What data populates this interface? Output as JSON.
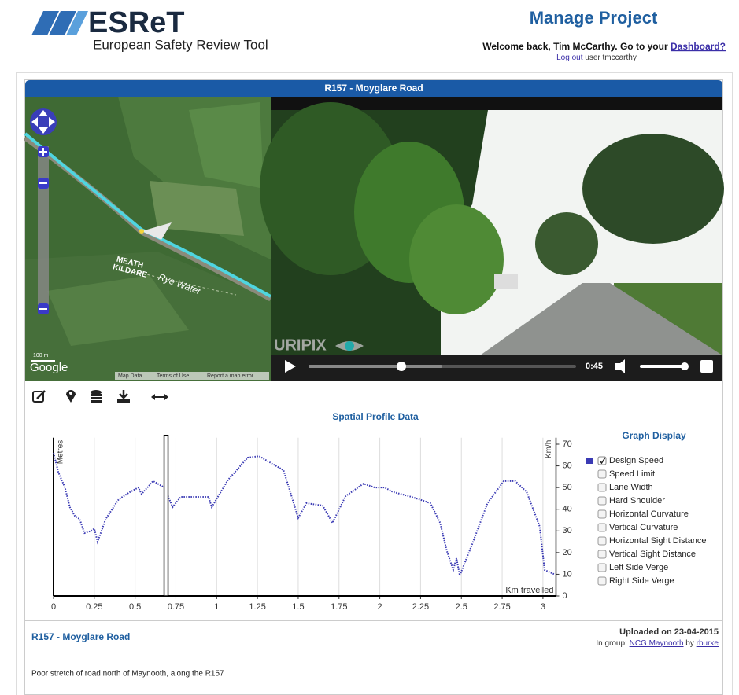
{
  "header": {
    "logo": "ESReT",
    "subtitle": "European Safety Review Tool",
    "page_title": "Manage Project",
    "welcome": "Welcome back, Tim McCarthy. Go to your",
    "dashboard_link": "Dashboard?",
    "logout": "Log out",
    "user": "user tmccarthy"
  },
  "panel": {
    "title": "R157 - Moyglare Road"
  },
  "map": {
    "labels": [
      "MEATH",
      "KILDARE",
      "Rye Water"
    ],
    "scale": "100 m",
    "brand": "Google",
    "footer": [
      "Map Data",
      "Terms of Use",
      "Report a map error"
    ]
  },
  "video": {
    "watermark": "URIPIX",
    "time": "0:45"
  },
  "chart_data": {
    "type": "line",
    "title": "Spatial Profile Data",
    "y_label": "Metres",
    "y2_label": "Km/h",
    "x_label": "Km travelled",
    "x": [
      0,
      0.03,
      0.07,
      0.1,
      0.13,
      0.16,
      0.19,
      0.23,
      0.25,
      0.27,
      0.32,
      0.4,
      0.47,
      0.52,
      0.54,
      0.61,
      0.68,
      0.73,
      0.78,
      0.85,
      0.95,
      0.97,
      1.07,
      1.19,
      1.26,
      1.34,
      1.41,
      1.5,
      1.55,
      1.65,
      1.71,
      1.79,
      1.9,
      1.97,
      2.03,
      2.08,
      2.18,
      2.24,
      2.31,
      2.37,
      2.41,
      2.45,
      2.47,
      2.49,
      2.57,
      2.66,
      2.76,
      2.83,
      2.9,
      2.98,
      3.01,
      3.07
    ],
    "series": [
      {
        "name": "Design Speed",
        "color": "#3a3ab4",
        "values": [
          66,
          57,
          50,
          41,
          37,
          35.5,
          29,
          30,
          31,
          25,
          35.5,
          44.6,
          48,
          50,
          47,
          53,
          50,
          41,
          45.7,
          45.7,
          45.7,
          41,
          53.6,
          63.8,
          64.5,
          61,
          58,
          36,
          42.8,
          41.7,
          33.7,
          46,
          51.8,
          50,
          50,
          48,
          46,
          44.6,
          42.8,
          33.7,
          21,
          12,
          17.4,
          9.4,
          24.6,
          42.8,
          53,
          53,
          48,
          32,
          12,
          10
        ]
      }
    ],
    "xlim": [
      0,
      3.08
    ],
    "xticks": [
      0,
      0.25,
      0.5,
      0.75,
      1,
      1.25,
      1.5,
      1.75,
      2,
      2.25,
      2.5,
      2.75,
      3
    ],
    "ylim": [
      0,
      73
    ],
    "yticks": [
      0,
      10,
      20,
      30,
      40,
      50,
      60,
      70
    ],
    "grid": "x",
    "cursor_x": 0.69
  },
  "graph_display": {
    "title": "Graph Display",
    "options": [
      "Speed Limit",
      "Lane Width",
      "Hard Shoulder",
      "Horizontal Curvature",
      "Vertical Curvature",
      "Horizontal Sight Distance",
      "Vertical Sight Distance",
      "Left Side Verge",
      "Right Side Verge"
    ]
  },
  "footer": {
    "title": "R157 - Moyglare Road",
    "uploaded": "Uploaded on 23-04-2015",
    "group_prefix": "In group:",
    "group": "NCG Maynooth",
    "by": "by",
    "owner": "rburke",
    "description": "Poor stretch of road north of Maynooth, along the R157"
  }
}
